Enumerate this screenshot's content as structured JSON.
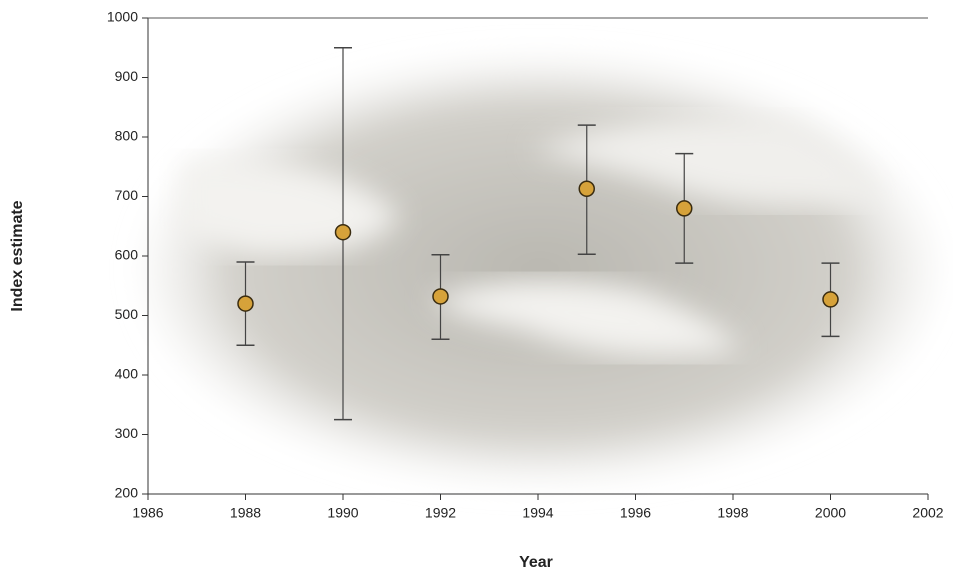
{
  "chart_data": {
    "type": "scatter",
    "x_label": "Year",
    "y_label": "Index estimate",
    "x": [
      1988,
      1990,
      1992,
      1995,
      1997,
      2000
    ],
    "values": [
      520,
      640,
      532,
      713,
      680,
      527
    ],
    "low": [
      450,
      325,
      460,
      603,
      588,
      465
    ],
    "high": [
      590,
      950,
      602,
      820,
      772,
      588
    ],
    "color": "#d6a23a",
    "xlim": [
      1986,
      2002
    ],
    "xticks": [
      1986,
      1988,
      1990,
      1992,
      1994,
      1996,
      1998,
      2000,
      2002
    ],
    "ylim": [
      200,
      1000
    ],
    "yticks": [
      200,
      300,
      400,
      500,
      600,
      700,
      800,
      900,
      1000
    ]
  }
}
